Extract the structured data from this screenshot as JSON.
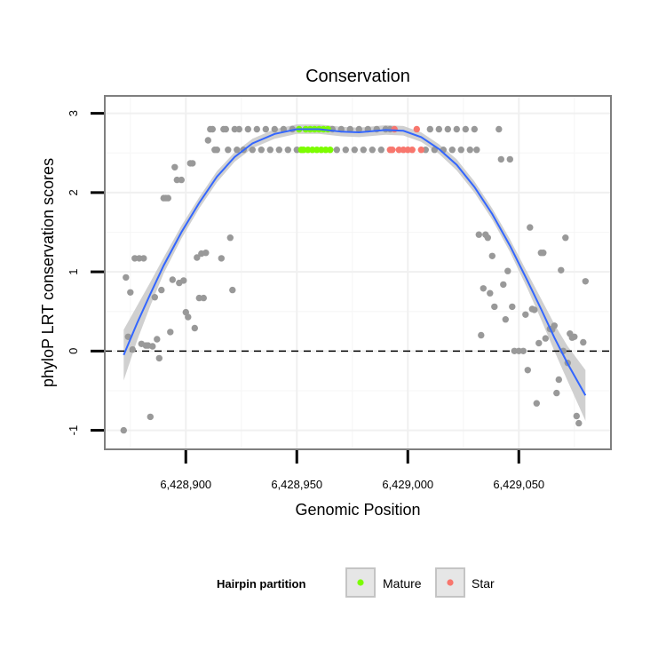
{
  "chart_data": {
    "type": "scatter",
    "title": "Conservation",
    "xlabel": "Genomic Position",
    "ylabel": "phyloP LRT conservation scores",
    "xlim": [
      6428863.5,
      6429091.5
    ],
    "ylim": [
      -1.24,
      3.22
    ],
    "x_ticks": [
      {
        "value": 6428900,
        "label": "6,428,900"
      },
      {
        "value": 6428950,
        "label": "6,428,950"
      },
      {
        "value": 6429000,
        "label": "6,429,000"
      },
      {
        "value": 6429050,
        "label": "6,429,050"
      }
    ],
    "y_ticks": [
      {
        "value": -1,
        "label": "-1"
      },
      {
        "value": 0,
        "label": "0"
      },
      {
        "value": 1,
        "label": "1"
      },
      {
        "value": 2,
        "label": "2"
      },
      {
        "value": 3,
        "label": "3"
      }
    ],
    "reference_line": {
      "y": 0,
      "style": "dashed"
    },
    "legend": {
      "title": "Hairpin partition",
      "position": "bottom",
      "entries": [
        {
          "name": "Mature",
          "color": "#7cfc00"
        },
        {
          "name": "Star",
          "color": "#f8766d"
        }
      ]
    },
    "colors": {
      "other": "#999999",
      "smooth": "#3366ff",
      "ribbon": "#c8c8c8",
      "panel_border": "#7f7f7f",
      "grid": "#f0f0f0"
    },
    "series": [
      {
        "name": "Other",
        "points": [
          [
            6428872,
            -1.0
          ],
          [
            6428873,
            0.93
          ],
          [
            6428874,
            0.18
          ],
          [
            6428875,
            0.74
          ],
          [
            6428876,
            0.02
          ],
          [
            6428877,
            1.17
          ],
          [
            6428879,
            1.17
          ],
          [
            6428880,
            0.09
          ],
          [
            6428881,
            1.17
          ],
          [
            6428882,
            0.07
          ],
          [
            6428883,
            0.07
          ],
          [
            6428884,
            -0.83
          ],
          [
            6428885,
            0.06
          ],
          [
            6428886,
            0.68
          ],
          [
            6428887,
            0.15
          ],
          [
            6428888,
            -0.09
          ],
          [
            6428889,
            0.77
          ],
          [
            6428890,
            1.93
          ],
          [
            6428891,
            1.93
          ],
          [
            6428892,
            1.93
          ],
          [
            6428893,
            0.24
          ],
          [
            6428894,
            0.9
          ],
          [
            6428895,
            2.32
          ],
          [
            6428896,
            2.16
          ],
          [
            6428897,
            0.86
          ],
          [
            6428898,
            2.16
          ],
          [
            6428899,
            0.89
          ],
          [
            6428900,
            0.49
          ],
          [
            6428901,
            0.43
          ],
          [
            6428902,
            2.37
          ],
          [
            6428903,
            2.37
          ],
          [
            6428904,
            0.29
          ],
          [
            6428905,
            1.18
          ],
          [
            6428906,
            0.67
          ],
          [
            6428907,
            1.23
          ],
          [
            6428908,
            0.67
          ],
          [
            6428909,
            1.24
          ],
          [
            6428910,
            2.66
          ],
          [
            6428911,
            2.8
          ],
          [
            6428912,
            2.8
          ],
          [
            6428913,
            2.54
          ],
          [
            6428914,
            2.54
          ],
          [
            6428916,
            1.17
          ],
          [
            6428917,
            2.8
          ],
          [
            6428918,
            2.8
          ],
          [
            6428919,
            2.54
          ],
          [
            6428920,
            1.43
          ],
          [
            6428921,
            0.77
          ],
          [
            6428922,
            2.8
          ],
          [
            6428923,
            2.54
          ],
          [
            6428924,
            2.8
          ],
          [
            6428926,
            2.54
          ],
          [
            6428928,
            2.8
          ],
          [
            6428930,
            2.54
          ],
          [
            6428932,
            2.8
          ],
          [
            6428934,
            2.54
          ],
          [
            6428936,
            2.8
          ],
          [
            6428938,
            2.54
          ],
          [
            6428940,
            2.8
          ],
          [
            6428942,
            2.54
          ],
          [
            6428944,
            2.8
          ],
          [
            6428946,
            2.54
          ],
          [
            6428948,
            2.8
          ],
          [
            6428950,
            2.54
          ],
          [
            6428966,
            2.8
          ],
          [
            6428968,
            2.54
          ],
          [
            6428970,
            2.8
          ],
          [
            6428972,
            2.54
          ],
          [
            6428974,
            2.8
          ],
          [
            6428976,
            2.54
          ],
          [
            6428978,
            2.8
          ],
          [
            6428980,
            2.54
          ],
          [
            6428982,
            2.8
          ],
          [
            6428984,
            2.54
          ],
          [
            6428986,
            2.8
          ],
          [
            6428988,
            2.54
          ],
          [
            6428990,
            2.8
          ],
          [
            6428992,
            2.8
          ],
          [
            6429008,
            2.54
          ],
          [
            6429010,
            2.8
          ],
          [
            6429012,
            2.54
          ],
          [
            6429014,
            2.8
          ],
          [
            6429016,
            2.54
          ],
          [
            6429018,
            2.8
          ],
          [
            6429020,
            2.54
          ],
          [
            6429022,
            2.8
          ],
          [
            6429024,
            2.54
          ],
          [
            6429026,
            2.8
          ],
          [
            6429028,
            2.54
          ],
          [
            6429030,
            2.8
          ],
          [
            6429031,
            2.54
          ],
          [
            6429032,
            1.47
          ],
          [
            6429033,
            0.2
          ],
          [
            6429034,
            0.79
          ],
          [
            6429035,
            1.47
          ],
          [
            6429036,
            1.43
          ],
          [
            6429037,
            0.73
          ],
          [
            6429038,
            1.2
          ],
          [
            6429039,
            0.56
          ],
          [
            6429041,
            2.8
          ],
          [
            6429042,
            2.42
          ],
          [
            6429043,
            0.84
          ],
          [
            6429044,
            0.4
          ],
          [
            6429045,
            1.01
          ],
          [
            6429046,
            2.42
          ],
          [
            6429047,
            0.56
          ],
          [
            6429048,
            0.0
          ],
          [
            6429050,
            0.0
          ],
          [
            6429052,
            0.0
          ],
          [
            6429053,
            0.46
          ],
          [
            6429054,
            -0.24
          ],
          [
            6429055,
            1.56
          ],
          [
            6429056,
            0.53
          ],
          [
            6429057,
            0.52
          ],
          [
            6429058,
            -0.66
          ],
          [
            6429059,
            0.1
          ],
          [
            6429060,
            1.24
          ],
          [
            6429061,
            1.24
          ],
          [
            6429062,
            0.16
          ],
          [
            6429064,
            0.28
          ],
          [
            6429065,
            0.27
          ],
          [
            6429066,
            0.32
          ],
          [
            6429067,
            -0.53
          ],
          [
            6429068,
            -0.36
          ],
          [
            6429069,
            1.02
          ],
          [
            6429070,
            0.0
          ],
          [
            6429071,
            1.43
          ],
          [
            6429072,
            -0.15
          ],
          [
            6429073,
            0.22
          ],
          [
            6429074,
            0.17
          ],
          [
            6429075,
            0.18
          ],
          [
            6429076,
            -0.82
          ],
          [
            6429077,
            -0.91
          ],
          [
            6429079,
            0.11
          ],
          [
            6429080,
            0.88
          ]
        ]
      },
      {
        "name": "Mature",
        "points": [
          [
            6428951,
            2.8
          ],
          [
            6428952,
            2.54
          ],
          [
            6428953,
            2.54
          ],
          [
            6428954,
            2.8
          ],
          [
            6428955,
            2.54
          ],
          [
            6428956,
            2.8
          ],
          [
            6428957,
            2.54
          ],
          [
            6428958,
            2.8
          ],
          [
            6428959,
            2.54
          ],
          [
            6428960,
            2.8
          ],
          [
            6428961,
            2.54
          ],
          [
            6428962,
            2.8
          ],
          [
            6428963,
            2.54
          ],
          [
            6428964,
            2.8
          ],
          [
            6428965,
            2.54
          ]
        ]
      },
      {
        "name": "Star",
        "points": [
          [
            6428992,
            2.54
          ],
          [
            6428993,
            2.54
          ],
          [
            6428994,
            2.8
          ],
          [
            6428996,
            2.54
          ],
          [
            6428998,
            2.54
          ],
          [
            6429000,
            2.54
          ],
          [
            6429002,
            2.54
          ],
          [
            6429004,
            2.8
          ],
          [
            6429006,
            2.54
          ]
        ]
      }
    ],
    "smooth": {
      "method": "loess",
      "curve": [
        [
          6428872,
          -0.05
        ],
        [
          6428878,
          0.35
        ],
        [
          6428884,
          0.72
        ],
        [
          6428890,
          1.08
        ],
        [
          6428898,
          1.5
        ],
        [
          6428906,
          1.87
        ],
        [
          6428914,
          2.2
        ],
        [
          6428922,
          2.45
        ],
        [
          6428930,
          2.62
        ],
        [
          6428940,
          2.74
        ],
        [
          6428950,
          2.8
        ],
        [
          6428960,
          2.8
        ],
        [
          6428970,
          2.77
        ],
        [
          6428978,
          2.76
        ],
        [
          6428990,
          2.79
        ],
        [
          6428998,
          2.78
        ],
        [
          6429006,
          2.7
        ],
        [
          6429014,
          2.55
        ],
        [
          6429022,
          2.35
        ],
        [
          6429030,
          2.07
        ],
        [
          6429038,
          1.73
        ],
        [
          6429046,
          1.33
        ],
        [
          6429054,
          0.88
        ],
        [
          6429060,
          0.53
        ],
        [
          6429066,
          0.17
        ],
        [
          6429072,
          -0.16
        ],
        [
          6429080,
          -0.56
        ]
      ],
      "band_halfwidth": [
        0.32,
        0.22,
        0.15,
        0.1,
        0.08,
        0.07,
        0.07,
        0.06,
        0.06,
        0.06,
        0.06,
        0.06,
        0.06,
        0.06,
        0.06,
        0.06,
        0.06,
        0.06,
        0.07,
        0.07,
        0.07,
        0.08,
        0.1,
        0.13,
        0.17,
        0.22,
        0.32
      ]
    }
  }
}
